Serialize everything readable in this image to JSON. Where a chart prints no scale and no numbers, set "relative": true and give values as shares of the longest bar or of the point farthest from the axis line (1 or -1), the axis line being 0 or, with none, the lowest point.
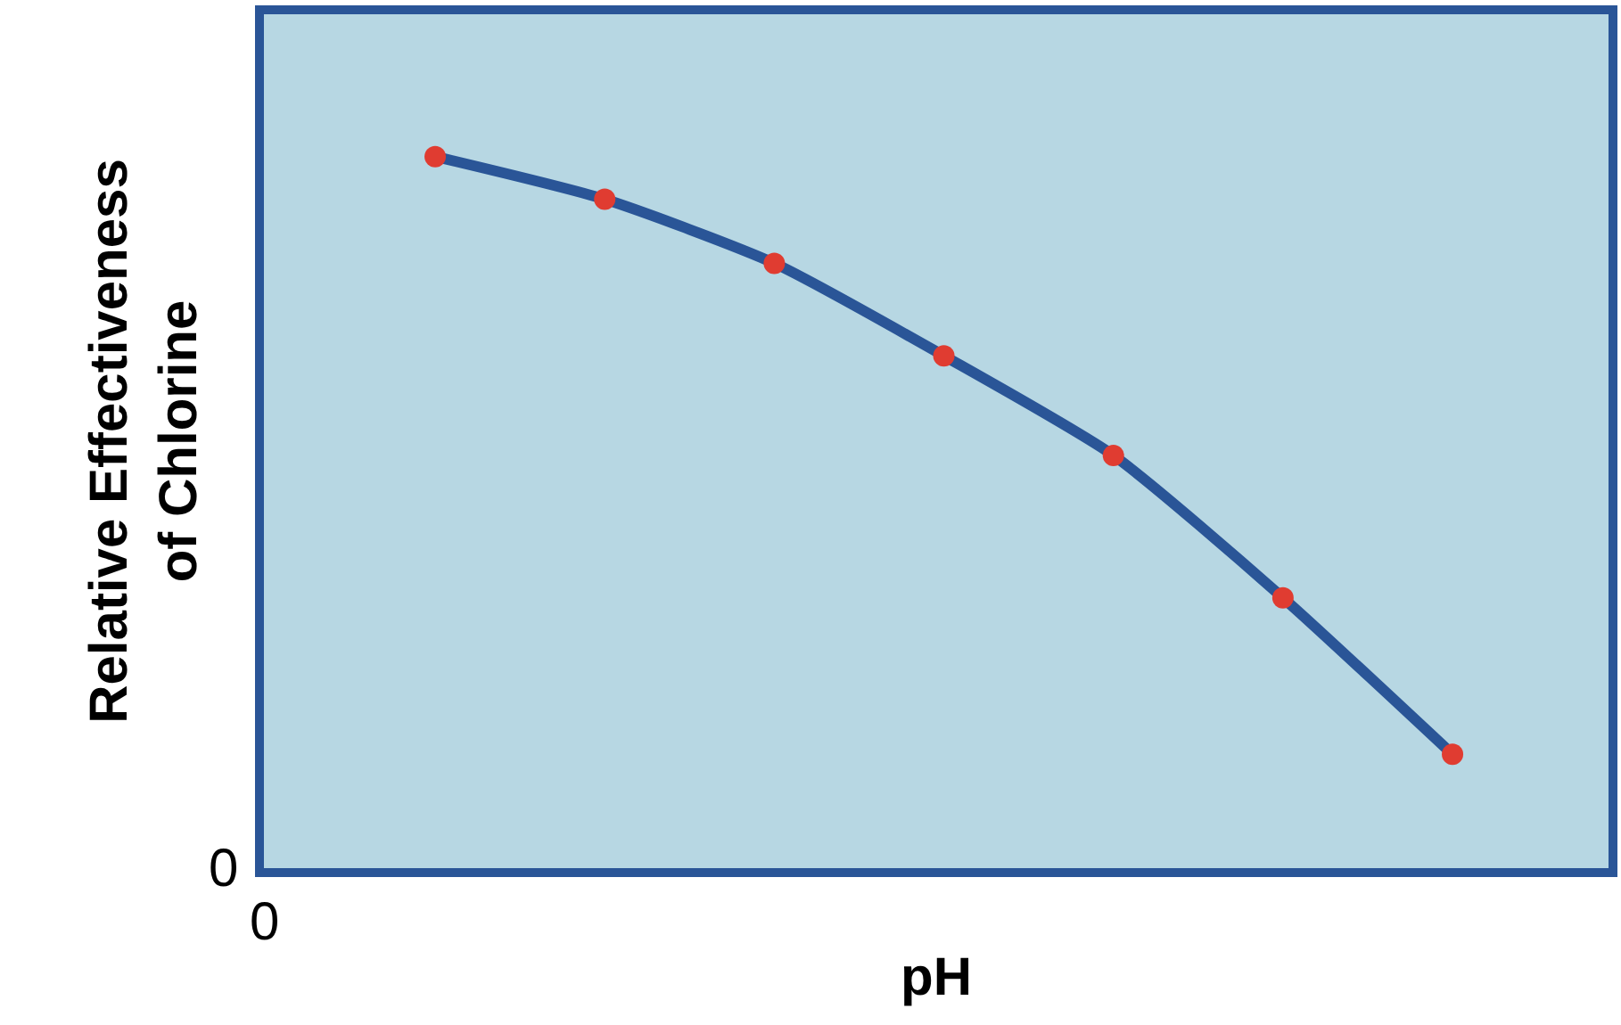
{
  "chart_data": {
    "type": "line",
    "relative": true,
    "xlabel": "pH",
    "ylabel": "Relative Effectiveness\nof Chlorine",
    "categories": [
      null,
      null,
      null,
      null,
      null,
      null,
      null
    ],
    "series": [
      {
        "color": "#2a5597",
        "values": [
          1,
          0.94,
          0.85,
          0.72,
          0.58,
          0.38,
          0.16
        ]
      }
    ],
    "marker": "circle",
    "grid": false,
    "legend": false,
    "annotations": [
      "0",
      "0"
    ]
  }
}
